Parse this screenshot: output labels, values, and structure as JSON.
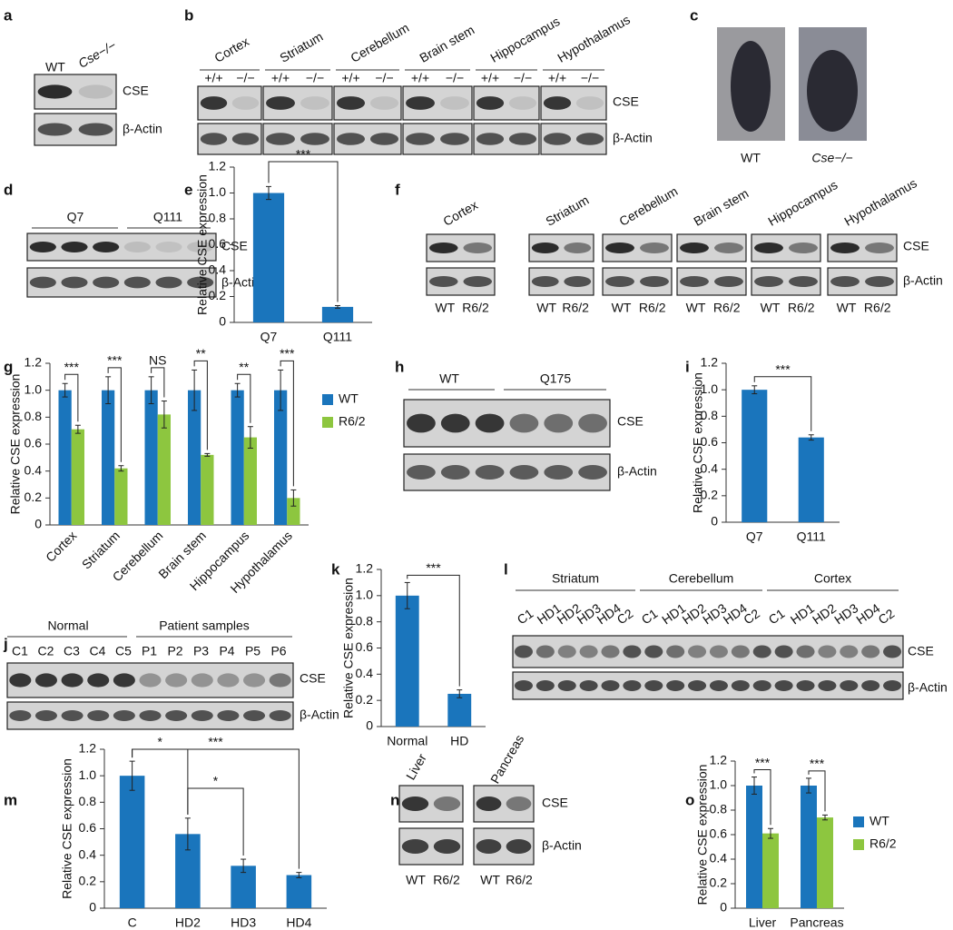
{
  "panels": {
    "a": {
      "letter": "a",
      "lanes": [
        "WT",
        "Cse−/−"
      ],
      "bands": [
        "CSE",
        "β-Actin"
      ]
    },
    "b": {
      "letter": "b",
      "regions": [
        "Cortex",
        "Striatum",
        "Cerebellum",
        "Brain stem",
        "Hippocampus",
        "Hypothalamus"
      ],
      "genotypes": [
        "+/+",
        "−/−"
      ],
      "bands": [
        "CSE",
        "β-Actin"
      ]
    },
    "c": {
      "letter": "c",
      "labels": [
        "WT",
        "Cse−/−"
      ]
    },
    "d": {
      "letter": "d",
      "groups": [
        "Q7",
        "Q111"
      ],
      "bands": [
        "CSE",
        "β-Actin"
      ]
    },
    "f": {
      "letter": "f",
      "regions": [
        "Cortex",
        "Striatum",
        "Cerebellum",
        "Brain stem",
        "Hippocampus",
        "Hypothalamus"
      ],
      "lanes": [
        "WT",
        "R6/2"
      ],
      "bands": [
        "CSE",
        "β-Actin"
      ]
    },
    "h": {
      "letter": "h",
      "groups": [
        "WT",
        "Q175"
      ],
      "bands": [
        "CSE",
        "β-Actin"
      ]
    },
    "j": {
      "letter": "j",
      "groups": [
        "Normal",
        "Patient samples"
      ],
      "lanes": [
        "C1",
        "C2",
        "C3",
        "C4",
        "C5",
        "P1",
        "P2",
        "P3",
        "P4",
        "P5",
        "P6"
      ],
      "bands": [
        "CSE",
        "β-Actin"
      ]
    },
    "l": {
      "letter": "l",
      "groups": [
        "Striatum",
        "Cerebellum",
        "Cortex"
      ],
      "lanes": [
        "C1",
        "HD1",
        "HD2",
        "HD3",
        "HD4",
        "C2"
      ],
      "bands": [
        "CSE",
        "β-Actin"
      ]
    },
    "n": {
      "letter": "n",
      "tissues": [
        "Liver",
        "Pancreas"
      ],
      "lanes": [
        "WT",
        "R6/2"
      ],
      "bands": [
        "CSE",
        "β-Actin"
      ]
    }
  },
  "chart_data": [
    {
      "type": "bar",
      "panel": "e",
      "ylabel": "Relative CSE expression",
      "categories": [
        "Q7",
        "Q111"
      ],
      "series": [
        {
          "color": "#1a75bc",
          "values": [
            1.0,
            0.12
          ],
          "errors": [
            0.05,
            0.01
          ]
        }
      ],
      "ylim": [
        0,
        1.2
      ],
      "yticks": [
        0,
        0.2,
        0.4,
        0.6,
        0.8,
        {
          "value": 1,
          "label": "1.0"
        },
        1.2
      ],
      "annotations": [
        "***"
      ]
    },
    {
      "type": "bar",
      "panel": "g",
      "ylabel": "Relative CSE expression",
      "categories": [
        "Cortex",
        "Striatum",
        "Cerebellum",
        "Brain stem",
        "Hippocampus",
        "Hypothalamus"
      ],
      "series": [
        {
          "name": "WT",
          "color": "#1a75bc",
          "values": [
            1,
            1,
            1,
            1,
            1,
            1
          ],
          "errors": [
            0.05,
            0.1,
            0.1,
            0.15,
            0.05,
            0.15
          ]
        },
        {
          "name": "R6/2",
          "color": "#8dc63f",
          "values": [
            0.71,
            0.42,
            0.82,
            0.52,
            0.65,
            0.2
          ],
          "errors": [
            0.03,
            0.02,
            0.1,
            0.01,
            0.08,
            0.06
          ]
        }
      ],
      "ylim": [
        0,
        1.2
      ],
      "yticks": [
        0,
        0.2,
        0.4,
        0.6,
        0.8,
        {
          "value": 1,
          "label": "1.0"
        },
        1.2
      ],
      "annotations": [
        "***",
        "***",
        "NS",
        "**",
        "**",
        "***"
      ]
    },
    {
      "type": "bar",
      "panel": "i",
      "ylabel": "Relative CSE expression",
      "categories": [
        "Q7",
        "Q111"
      ],
      "series": [
        {
          "color": "#1a75bc",
          "values": [
            1.0,
            0.64
          ],
          "errors": [
            0.03,
            0.02
          ]
        }
      ],
      "ylim": [
        0,
        1.2
      ],
      "yticks": [
        0,
        0.2,
        0.4,
        0.6,
        0.8,
        {
          "value": 1,
          "label": "1.0"
        },
        1.2
      ],
      "annotations": [
        "***"
      ]
    },
    {
      "type": "bar",
      "panel": "k",
      "ylabel": "Relative CSE expression",
      "categories": [
        "Normal",
        "HD"
      ],
      "series": [
        {
          "color": "#1a75bc",
          "values": [
            1.0,
            0.25
          ],
          "errors": [
            0.1,
            0.03
          ]
        }
      ],
      "ylim": [
        0,
        1.2
      ],
      "yticks": [
        0,
        0.2,
        0.4,
        0.6,
        0.8,
        {
          "value": 1,
          "label": "1.0"
        },
        1.2
      ],
      "annotations": [
        "***"
      ]
    },
    {
      "type": "bar",
      "panel": "m",
      "ylabel": "Relative CSE expression",
      "categories": [
        "C",
        "HD2",
        "HD3",
        "HD4"
      ],
      "series": [
        {
          "color": "#1a75bc",
          "values": [
            1.0,
            0.56,
            0.32,
            0.25
          ],
          "errors": [
            0.11,
            0.12,
            0.05,
            0.02
          ]
        }
      ],
      "ylim": [
        0,
        1.2
      ],
      "yticks": [
        0,
        0.2,
        0.4,
        0.6,
        0.8,
        {
          "value": 1,
          "label": "1.0"
        },
        1.2
      ],
      "annotations": [
        "*",
        "*",
        "***"
      ]
    },
    {
      "type": "bar",
      "panel": "o",
      "ylabel": "Relative CSE expression",
      "categories": [
        "Liver",
        "Pancreas"
      ],
      "series": [
        {
          "name": "WT",
          "color": "#1a75bc",
          "values": [
            1.0,
            1.0
          ],
          "errors": [
            0.07,
            0.06
          ]
        },
        {
          "name": "R6/2",
          "color": "#8dc63f",
          "values": [
            0.61,
            0.74
          ],
          "errors": [
            0.04,
            0.02
          ]
        }
      ],
      "ylim": [
        0,
        1.2
      ],
      "yticks": [
        0,
        0.2,
        0.4,
        0.6,
        0.8,
        {
          "value": 1,
          "label": "1.0"
        },
        1.2
      ],
      "annotations": [
        "***",
        "***"
      ]
    }
  ]
}
